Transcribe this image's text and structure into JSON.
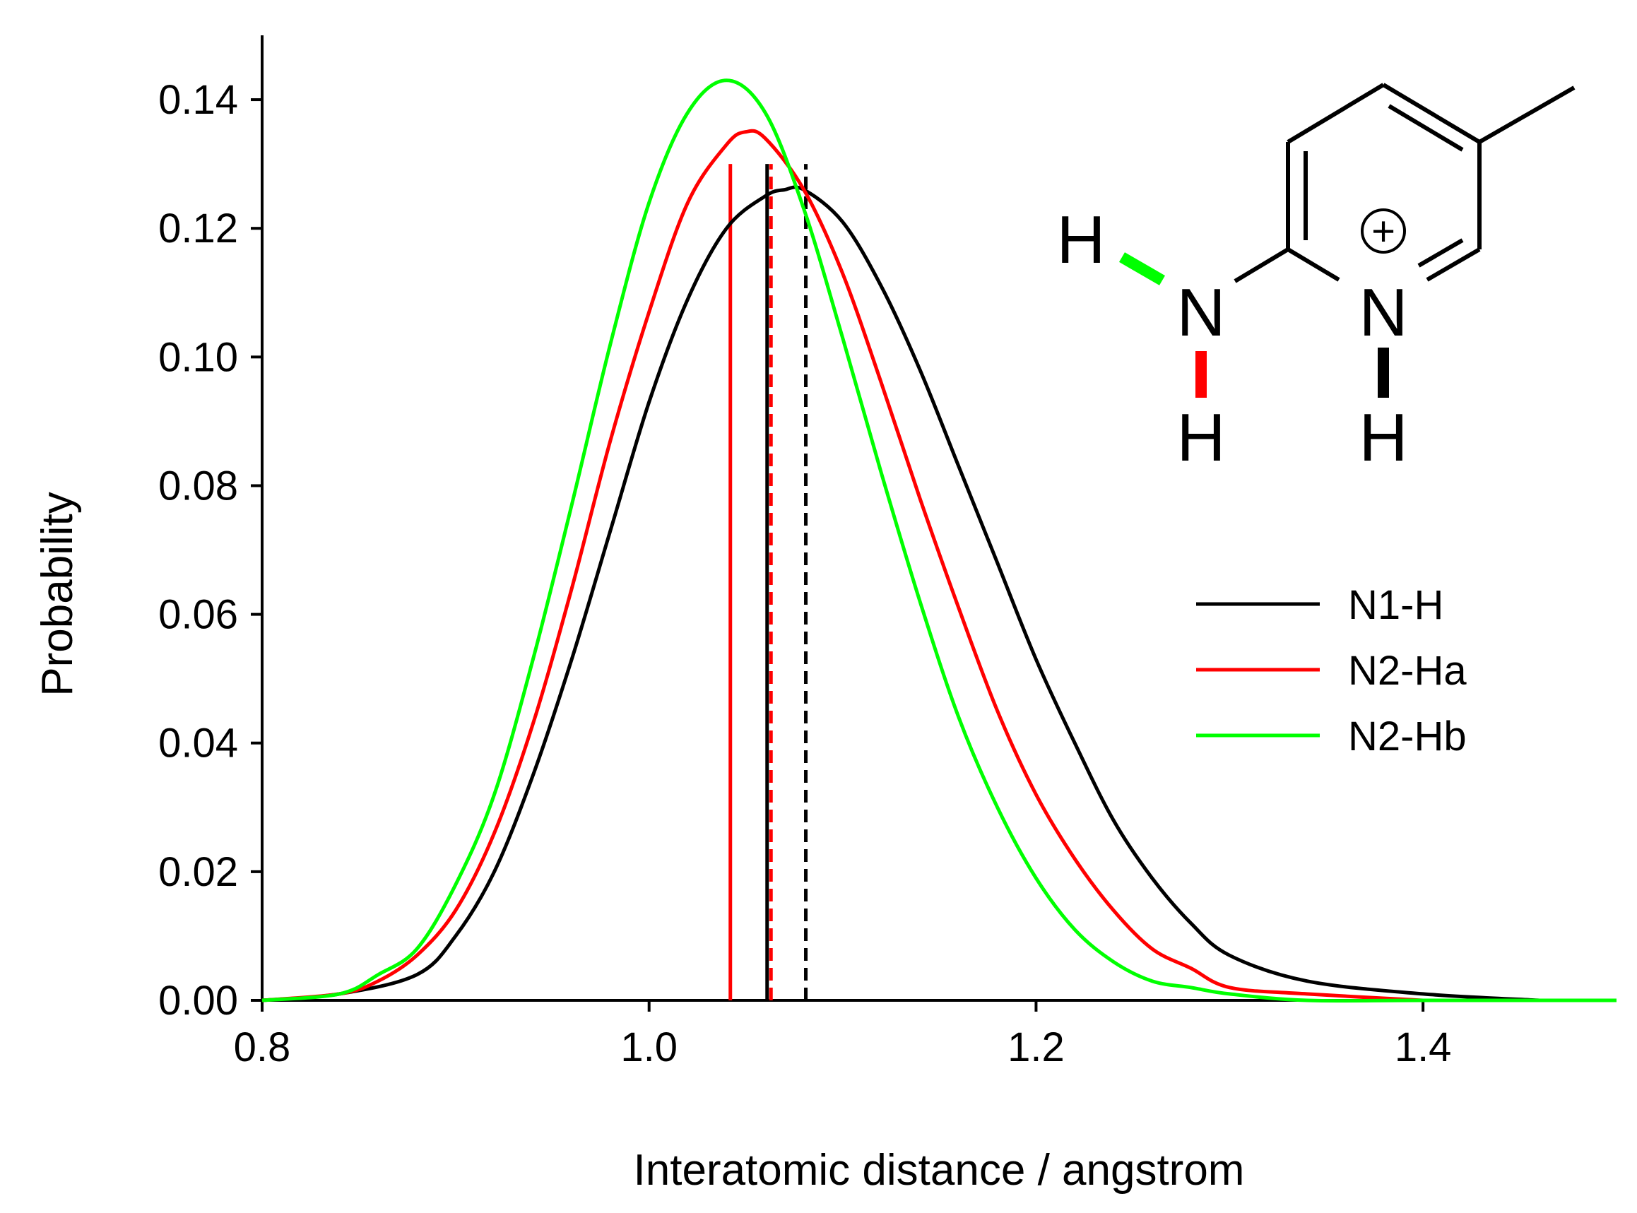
{
  "chart_data": {
    "type": "line",
    "title": "",
    "xlabel": "Interatomic distance / angstrom",
    "ylabel": "Probability",
    "xlim": [
      0.8,
      1.5
    ],
    "ylim": [
      0,
      0.15
    ],
    "xticks": [
      0.8,
      1.0,
      1.2,
      1.4
    ],
    "xtick_labels": [
      "0.8",
      "1.0",
      "1.2",
      "1.4"
    ],
    "yticks": [
      0.0,
      0.02,
      0.04,
      0.06,
      0.08,
      0.1,
      0.12,
      0.14
    ],
    "ytick_labels": [
      "0.00",
      "0.02",
      "0.04",
      "0.06",
      "0.08",
      "0.10",
      "0.12",
      "0.14"
    ],
    "grid": false,
    "legend_position": "right",
    "series": [
      {
        "name": "N1-H",
        "color": "#000000",
        "x": [
          0.8,
          0.84,
          0.88,
          0.9,
          0.92,
          0.94,
          0.96,
          0.98,
          1.0,
          1.02,
          1.04,
          1.06,
          1.07,
          1.08,
          1.1,
          1.12,
          1.14,
          1.16,
          1.18,
          1.2,
          1.22,
          1.24,
          1.26,
          1.28,
          1.3,
          1.34,
          1.4,
          1.46
        ],
        "y": [
          0.0,
          0.001,
          0.004,
          0.01,
          0.02,
          0.035,
          0.053,
          0.073,
          0.093,
          0.109,
          0.12,
          0.125,
          0.126,
          0.126,
          0.121,
          0.111,
          0.098,
          0.083,
          0.068,
          0.053,
          0.04,
          0.028,
          0.019,
          0.012,
          0.007,
          0.003,
          0.001,
          0.0
        ]
      },
      {
        "name": "N2-Ha",
        "color": "#ff0000",
        "x": [
          0.8,
          0.84,
          0.86,
          0.88,
          0.9,
          0.92,
          0.94,
          0.96,
          0.98,
          1.0,
          1.02,
          1.04,
          1.05,
          1.06,
          1.08,
          1.1,
          1.12,
          1.14,
          1.16,
          1.18,
          1.2,
          1.22,
          1.24,
          1.26,
          1.28,
          1.3,
          1.34,
          1.4
        ],
        "y": [
          0.0,
          0.001,
          0.003,
          0.007,
          0.014,
          0.026,
          0.043,
          0.064,
          0.087,
          0.107,
          0.124,
          0.133,
          0.135,
          0.134,
          0.126,
          0.113,
          0.096,
          0.078,
          0.061,
          0.045,
          0.032,
          0.022,
          0.014,
          0.008,
          0.005,
          0.002,
          0.001,
          0.0
        ]
      },
      {
        "name": "N2-Hb",
        "color": "#00ff00",
        "x": [
          0.8,
          0.84,
          0.86,
          0.88,
          0.9,
          0.92,
          0.94,
          0.96,
          0.98,
          1.0,
          1.02,
          1.04,
          1.06,
          1.08,
          1.1,
          1.12,
          1.14,
          1.16,
          1.18,
          1.2,
          1.22,
          1.24,
          1.26,
          1.28,
          1.3,
          1.34,
          1.4,
          1.5
        ],
        "y": [
          0.0,
          0.001,
          0.004,
          0.008,
          0.018,
          0.032,
          0.053,
          0.077,
          0.102,
          0.124,
          0.138,
          0.143,
          0.138,
          0.123,
          0.103,
          0.082,
          0.062,
          0.044,
          0.03,
          0.019,
          0.011,
          0.006,
          0.003,
          0.002,
          0.001,
          0.0,
          0.0,
          0.0
        ]
      }
    ],
    "vertical_lines": [
      {
        "x": 1.042,
        "color": "#ff0000",
        "style": "solid"
      },
      {
        "x": 1.061,
        "color": "#000000",
        "style": "solid"
      },
      {
        "x": 1.063,
        "color": "#ff0000",
        "style": "dashed"
      },
      {
        "x": 1.081,
        "color": "#000000",
        "style": "dashed"
      }
    ]
  },
  "molecule": {
    "h_left": "H",
    "n_amino": "N",
    "h_amino_bottom": "H",
    "n_ring": "N",
    "h_ring_bottom": "H",
    "charge_sign": "+"
  }
}
